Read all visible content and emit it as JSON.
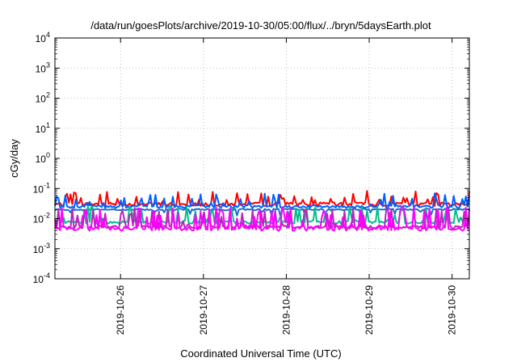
{
  "chart_data": {
    "type": "line",
    "title": "/data/run/goesPlots/archive/2019-10-30/05:00/flux/../bryn/5daysEarth.plot",
    "xlabel": "Coordinated Universal Time (UTC)",
    "ylabel": "cGy/day",
    "y_scale": "log",
    "ylim": [
      0.0001,
      10000
    ],
    "y_ticks": [
      {
        "base": "10",
        "exp": "-4",
        "value": 0.0001
      },
      {
        "base": "10",
        "exp": "-3",
        "value": 0.001
      },
      {
        "base": "10",
        "exp": "-2",
        "value": 0.01
      },
      {
        "base": "10",
        "exp": "-1",
        "value": 0.1
      },
      {
        "base": "10",
        "exp": "0",
        "value": 1
      },
      {
        "base": "10",
        "exp": "1",
        "value": 10
      },
      {
        "base": "10",
        "exp": "2",
        "value": 100
      },
      {
        "base": "10",
        "exp": "3",
        "value": 1000
      },
      {
        "base": "10",
        "exp": "4",
        "value": 10000
      }
    ],
    "xlim": [
      "2019-10-25T05:00",
      "2019-10-30T05:00"
    ],
    "x_ticks": [
      "2019-10-26",
      "2019-10-27",
      "2019-10-28",
      "2019-10-29",
      "2019-10-30"
    ],
    "grid": true,
    "series": [
      {
        "color": "#ff0000",
        "base": 0.03,
        "noise": 0.12,
        "spike": 0.055,
        "spike_prob": 0.17,
        "spike_dir": 1
      },
      {
        "color": "#0060ff",
        "base": 0.025,
        "noise": 0.1,
        "spike": 0.048,
        "spike_prob": 0.16,
        "spike_dir": 1
      },
      {
        "color": "#1a70d0",
        "base": 0.02,
        "noise": 0.06,
        "spike": 0.008,
        "spike_prob": 0.12,
        "spike_dir": -1
      },
      {
        "color": "#00c08a",
        "base": 0.0075,
        "noise": 0.1,
        "spike": 0.02,
        "spike_prob": 0.22,
        "spike_dir": 1
      },
      {
        "color": "#c020c0",
        "base": 0.0052,
        "noise": 0.1,
        "spike": 0.018,
        "spike_prob": 0.22,
        "spike_dir": 1
      },
      {
        "color": "#ff00ff",
        "base": 0.0046,
        "noise": 0.14,
        "spike": 0.02,
        "spike_prob": 0.26,
        "spike_dir": 1
      }
    ],
    "n_points": 240,
    "line_width": 2
  }
}
